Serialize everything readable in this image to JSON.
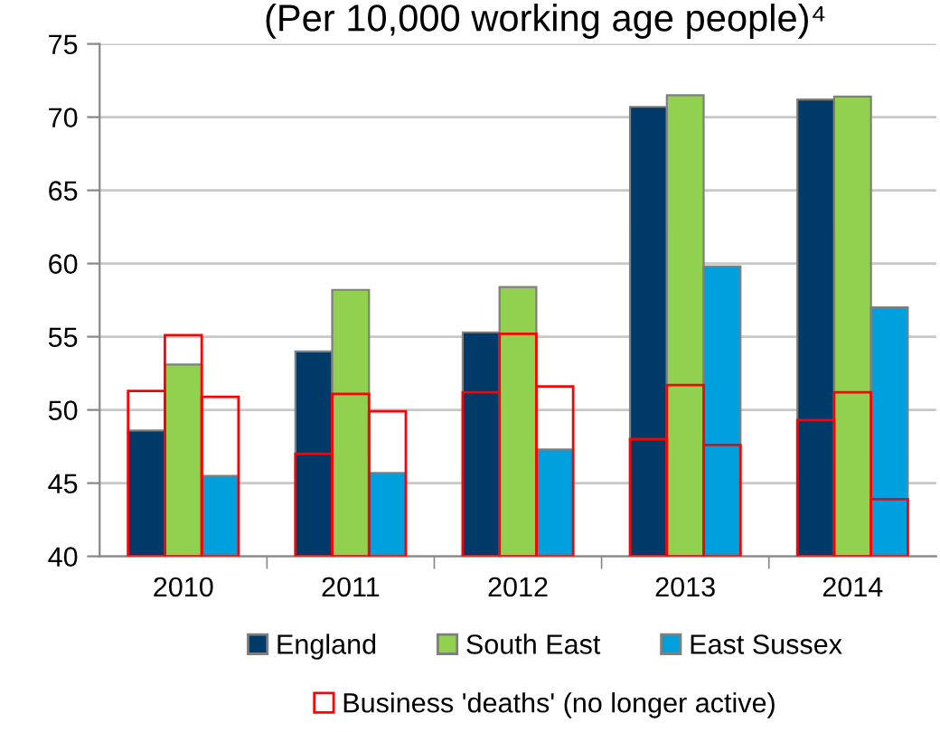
{
  "chart_data": {
    "type": "bar",
    "title": "(Per 10,000 working age people)⁴",
    "categories": [
      "2010",
      "2011",
      "2012",
      "2013",
      "2014"
    ],
    "series": [
      {
        "name": "England",
        "color": "#003a68",
        "values": [
          48.6,
          54.0,
          55.3,
          70.7,
          71.2
        ]
      },
      {
        "name": "South East",
        "color": "#92d050",
        "values": [
          53.1,
          58.2,
          58.4,
          71.5,
          71.4
        ]
      },
      {
        "name": "East Sussex",
        "color": "#00a0dc",
        "values": [
          45.5,
          45.7,
          47.3,
          59.8,
          57.0
        ]
      },
      {
        "name": "Business 'deaths' (no longer active)",
        "color": "#ff0000",
        "values": [
          51.3,
          47.0,
          51.2,
          48.0,
          49.3
        ]
      },
      {
        "color": "#ff0000",
        "values": [
          55.1,
          51.1,
          55.2,
          51.7,
          51.2
        ]
      },
      {
        "color": "#ff0000",
        "values": [
          50.9,
          49.9,
          51.6,
          47.6,
          43.9
        ]
      }
    ],
    "ylim": [
      40,
      75
    ],
    "yticks": [
      40,
      45,
      50,
      55,
      60,
      65,
      70,
      75
    ],
    "grid": "y",
    "legend": "bottom"
  }
}
